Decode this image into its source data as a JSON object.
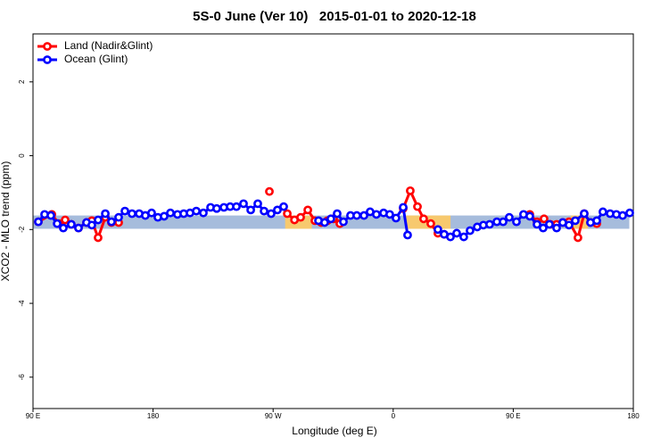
{
  "chart_data": {
    "type": "line",
    "title": "5S-0 June (Ver 10)   2015-01-01 to 2020-12-18",
    "x_label": "Longitude (deg E)",
    "y_label": "XCO2 - MLO trend (ppm)",
    "xlim": [
      90,
      540
    ],
    "ylim": [
      -6.85,
      3.3
    ],
    "xticks": [
      {
        "value": 90,
        "label": "90 E"
      },
      180,
      {
        "value": 270,
        "label": "90 W"
      },
      {
        "value": 360,
        "label": "0"
      },
      {
        "value": 450,
        "label": "90 E"
      },
      {
        "value": 540,
        "label": "180"
      }
    ],
    "yticks": [
      -6,
      -4,
      -2,
      0,
      2
    ],
    "legend": "top-left",
    "bands": [
      {
        "color": "#a6bcdc",
        "xlim": [
          90,
          537
        ],
        "ylim": [
          -1.98,
          -1.62
        ]
      },
      {
        "color": "#f7c96e",
        "xlim": [
          279,
          299
        ],
        "ylim": [
          -1.98,
          -1.62
        ]
      },
      {
        "color": "#f7c96e",
        "xlim": [
          369,
          403
        ],
        "ylim": [
          -1.98,
          -1.62
        ]
      },
      {
        "color": "#f7c96e",
        "xlim": [
          493,
          506
        ],
        "ylim": [
          -1.98,
          -1.62
        ]
      }
    ],
    "series": [
      {
        "name": "Land (Nadir&Glint)",
        "color": "#ff0000",
        "x": [
          94.0,
          104.1,
          109.4,
          114.1,
          118.7,
          124.1,
          130.1,
          134.1,
          138.8,
          144.2,
          148.8,
          154.2,
          200,
          267.2,
          274,
          280.6,
          286.0,
          290.6,
          296.0,
          301.3,
          306.0,
          310.7,
          315.3,
          320.0,
          340,
          367.5,
          372.8,
          378.2,
          382.8,
          388.2,
          393.5,
          398.2,
          430,
          462.4,
          467.8,
          473.1,
          477.8,
          482.5,
          487.1,
          491.8,
          498.5,
          503.2,
          507.9,
          512.6
        ],
        "values": [
          -1.79,
          -1.59,
          -1.84,
          -1.74,
          -1.86,
          -1.96,
          -1.81,
          -1.76,
          -2.22,
          -1.67,
          -1.81,
          -1.81,
          null,
          -0.97,
          null,
          -1.57,
          -1.74,
          -1.67,
          -1.47,
          -1.76,
          -1.81,
          -1.76,
          -1.71,
          -1.84,
          null,
          -1.43,
          -0.95,
          -1.38,
          -1.71,
          -1.84,
          -2.1,
          -2.13,
          null,
          -1.59,
          -1.79,
          -1.71,
          -1.86,
          -1.86,
          -1.81,
          -1.79,
          -2.22,
          -1.57,
          -1.81,
          -1.84
        ]
      },
      {
        "name": "Ocean (Glint)",
        "color": "#0000ff",
        "x": [
          94.0,
          98.7,
          103.4,
          108.1,
          112.7,
          118.7,
          124.1,
          130.1,
          134.1,
          138.8,
          144.2,
          148.8,
          154.2,
          158.9,
          164.2,
          169.6,
          174.2,
          178.9,
          183.6,
          188.3,
          193.0,
          198.3,
          203.0,
          207.7,
          212.4,
          217.7,
          223.1,
          227.7,
          233.1,
          237.8,
          242.5,
          247.8,
          253.2,
          258.5,
          263.2,
          268.5,
          273.2,
          277.9,
          290,
          304.0,
          308.6,
          313.3,
          318.0,
          322.7,
          328.0,
          332.7,
          338.1,
          342.7,
          347.4,
          352.8,
          357.4,
          362.1,
          367.5,
          370.8,
          380,
          393.5,
          398.2,
          402.9,
          407.6,
          412.9,
          417.6,
          423.0,
          427.6,
          432.3,
          437.7,
          442.4,
          447.0,
          452.4,
          457.7,
          462.4,
          467.8,
          472.4,
          477.1,
          482.5,
          487.1,
          491.8,
          496.5,
          503.2,
          507.9,
          512.6,
          517.2,
          522.6,
          527.3,
          532.0,
          537.3
        ],
        "values": [
          -1.79,
          -1.59,
          -1.62,
          -1.84,
          -1.96,
          -1.86,
          -1.96,
          -1.81,
          -1.88,
          -1.74,
          -1.57,
          -1.79,
          -1.67,
          -1.5,
          -1.57,
          -1.57,
          -1.62,
          -1.55,
          -1.67,
          -1.64,
          -1.55,
          -1.59,
          -1.57,
          -1.55,
          -1.5,
          -1.55,
          -1.4,
          -1.43,
          -1.4,
          -1.38,
          -1.38,
          -1.3,
          -1.47,
          -1.3,
          -1.5,
          -1.57,
          -1.47,
          -1.38,
          null,
          -1.76,
          -1.81,
          -1.71,
          -1.57,
          -1.79,
          -1.62,
          -1.62,
          -1.62,
          -1.52,
          -1.59,
          -1.55,
          -1.59,
          -1.69,
          -1.4,
          -2.15,
          null,
          -2.0,
          -2.13,
          -2.2,
          -2.1,
          -2.2,
          -2.03,
          -1.93,
          -1.88,
          -1.86,
          -1.79,
          -1.79,
          -1.67,
          -1.79,
          -1.59,
          -1.64,
          -1.86,
          -1.96,
          -1.86,
          -1.96,
          -1.81,
          -1.88,
          -1.76,
          -1.57,
          -1.81,
          -1.76,
          -1.52,
          -1.57,
          -1.59,
          -1.62,
          -1.55
        ]
      }
    ]
  }
}
